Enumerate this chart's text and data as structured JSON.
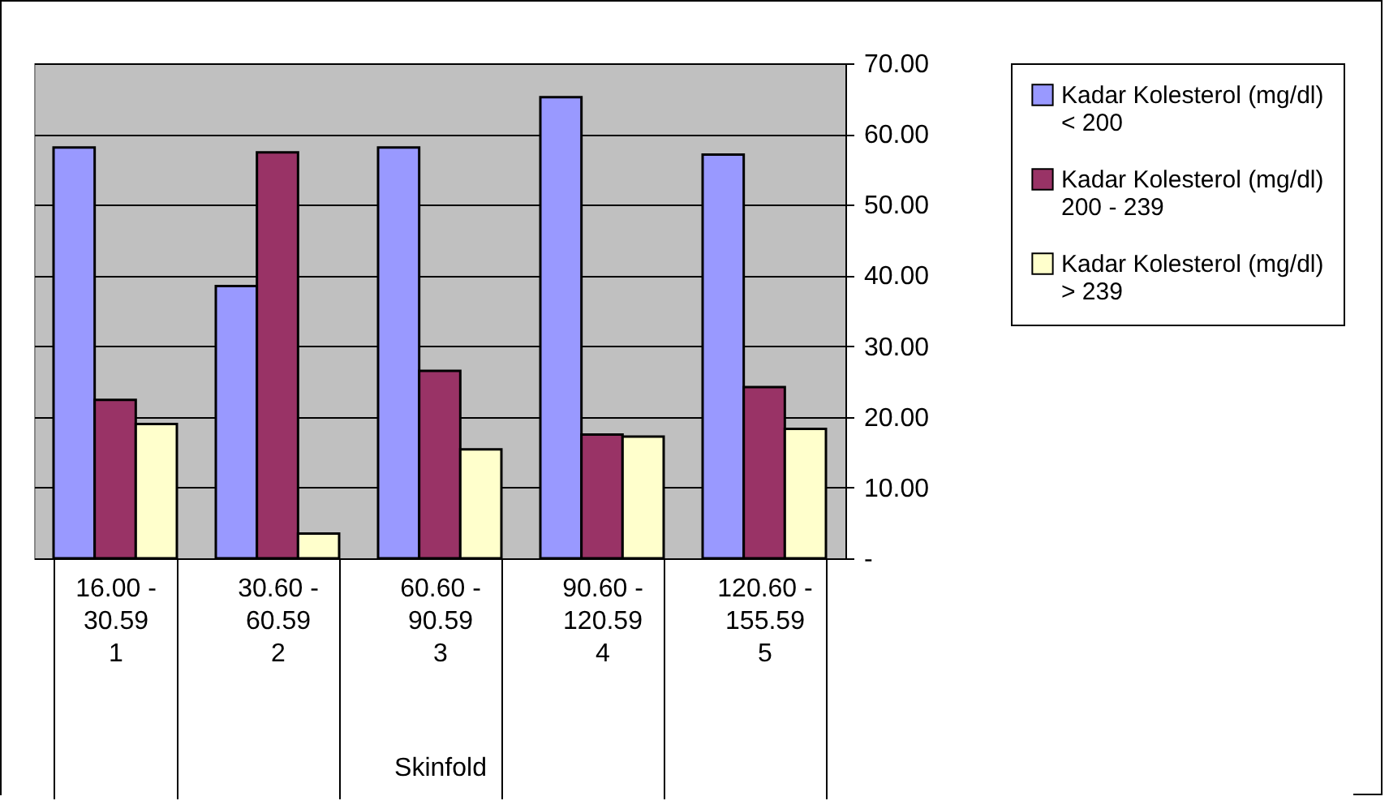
{
  "chart_data": {
    "type": "bar",
    "xlabel": "Skinfold",
    "categories": [
      "16.00 - 30.59",
      "30.60 - 60.59",
      "60.60 - 90.59",
      "90.60 - 120.59",
      "120.60 - 155.59"
    ],
    "annotations": [
      "1",
      "2",
      "3",
      "4",
      "5"
    ],
    "series": [
      {
        "name": "Kadar Kolesterol (mg/dl) < 200",
        "color": "#9999ff",
        "values": [
          58.1,
          38.5,
          58.1,
          65.2,
          57.1
        ]
      },
      {
        "name": "Kadar Kolesterol (mg/dl) 200 - 239",
        "color": "#993366",
        "values": [
          22.4,
          57.4,
          26.5,
          17.5,
          24.2
        ]
      },
      {
        "name": "Kadar Kolesterol (mg/dl) > 239",
        "color": "#ffffcc",
        "values": [
          19.0,
          3.5,
          15.4,
          17.2,
          18.3
        ]
      }
    ],
    "ylim": [
      0,
      70
    ],
    "yticks": [
      {
        "value": 0,
        "label": "-"
      },
      {
        "value": 10,
        "label": "10.00"
      },
      {
        "value": 20,
        "label": "20.00"
      },
      {
        "value": 30,
        "label": "30.00"
      },
      {
        "value": 40,
        "label": "40.00"
      },
      {
        "value": 50,
        "label": "50.00"
      },
      {
        "value": 60,
        "label": "60.00"
      },
      {
        "value": 70,
        "label": "70.00"
      }
    ],
    "grid": "y",
    "legend": "right"
  }
}
